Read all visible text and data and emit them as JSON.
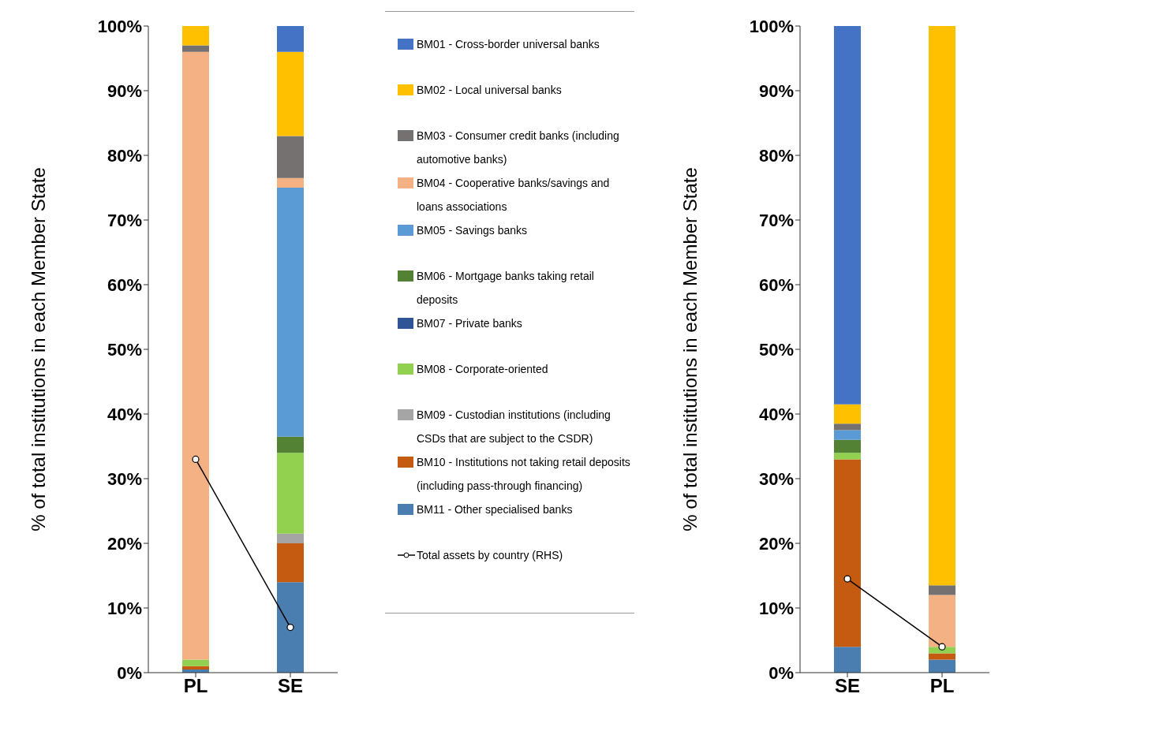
{
  "chart_data": [
    {
      "type": "bar",
      "stacked": true,
      "ylabel": "% of total institutions in each Member State",
      "categories": [
        "PL",
        "SE"
      ],
      "ylim": [
        0,
        100
      ],
      "yticks": [
        {
          "value": 0,
          "label": "0%"
        },
        {
          "value": 10,
          "label": "10%"
        },
        {
          "value": 20,
          "label": "20%"
        },
        {
          "value": 30,
          "label": "30%"
        },
        {
          "value": 40,
          "label": "40%"
        },
        {
          "value": 50,
          "label": "50%"
        },
        {
          "value": 60,
          "label": "60%"
        },
        {
          "value": 70,
          "label": "70%"
        },
        {
          "value": 80,
          "label": "80%"
        },
        {
          "value": 90,
          "label": "90%"
        },
        {
          "value": 100,
          "label": "100%"
        }
      ],
      "legend": "right",
      "series": [
        {
          "name": "BM11 - Other specialised banks",
          "color": "#4a7eb0",
          "values": [
            0.5,
            14
          ]
        },
        {
          "name": "BM10 - Institutions not taking retail deposits (including pass-through financing)",
          "color": "#c55a11",
          "values": [
            0.5,
            6
          ]
        },
        {
          "name": "BM09 - Custodian institutions (including CSDs that are subject to the CSDR)",
          "color": "#a5a5a5",
          "values": [
            0,
            1.5
          ]
        },
        {
          "name": "BM08 - Corporate-oriented",
          "color": "#92d050",
          "values": [
            1,
            12.5
          ]
        },
        {
          "name": "BM07 - Private banks",
          "color": "#2f5597",
          "values": [
            0,
            0
          ]
        },
        {
          "name": "BM06 - Mortgage banks taking retail deposits",
          "color": "#548235",
          "values": [
            0,
            2.5
          ]
        },
        {
          "name": "BM05 - Savings banks",
          "color": "#5b9bd5",
          "values": [
            0,
            38.5
          ]
        },
        {
          "name": "BM04 - Cooperative banks/savings and loans associations",
          "color": "#f4b183",
          "values": [
            94,
            1.5
          ]
        },
        {
          "name": "BM03 - Consumer credit banks (including automotive banks)",
          "color": "#767171",
          "values": [
            1,
            6.5
          ]
        },
        {
          "name": "BM02 - Local universal banks",
          "color": "#ffc000",
          "values": [
            3,
            13
          ]
        },
        {
          "name": "BM01 - Cross-border universal banks",
          "color": "#4472c4",
          "values": [
            0,
            4
          ]
        },
        {
          "name": "Total assets by country (RHS)",
          "type": "line",
          "marker": "circle",
          "color": "#000000",
          "values": [
            33,
            7
          ]
        }
      ]
    },
    {
      "type": "bar",
      "stacked": true,
      "ylabel": "% of total institutions in each Member State",
      "categories": [
        "SE",
        "PL"
      ],
      "ylim": [
        0,
        100
      ],
      "yticks": [
        {
          "value": 0,
          "label": "0%"
        },
        {
          "value": 10,
          "label": "10%"
        },
        {
          "value": 20,
          "label": "20%"
        },
        {
          "value": 30,
          "label": "30%"
        },
        {
          "value": 40,
          "label": "40%"
        },
        {
          "value": 50,
          "label": "50%"
        },
        {
          "value": 60,
          "label": "60%"
        },
        {
          "value": 70,
          "label": "70%"
        },
        {
          "value": 80,
          "label": "80%"
        },
        {
          "value": 90,
          "label": "90%"
        },
        {
          "value": 100,
          "label": "100%"
        }
      ],
      "series": [
        {
          "color": "#4a7eb0",
          "values": [
            4,
            2
          ]
        },
        {
          "color": "#c55a11",
          "values": [
            29,
            1
          ]
        },
        {
          "color": "#a5a5a5",
          "values": [
            0,
            0
          ]
        },
        {
          "color": "#92d050",
          "values": [
            1,
            1
          ]
        },
        {
          "color": "#2f5597",
          "values": [
            0,
            0
          ]
        },
        {
          "color": "#548235",
          "values": [
            2,
            0
          ]
        },
        {
          "color": "#5b9bd5",
          "values": [
            1.5,
            0
          ]
        },
        {
          "color": "#f4b183",
          "values": [
            0,
            8
          ]
        },
        {
          "color": "#767171",
          "values": [
            1,
            1.5
          ]
        },
        {
          "color": "#ffc000",
          "values": [
            3,
            86.5
          ]
        },
        {
          "color": "#4472c4",
          "values": [
            58.5,
            0
          ]
        },
        {
          "type": "line",
          "marker": "circle",
          "color": "#000000",
          "values": [
            14.5,
            4
          ]
        }
      ]
    }
  ]
}
